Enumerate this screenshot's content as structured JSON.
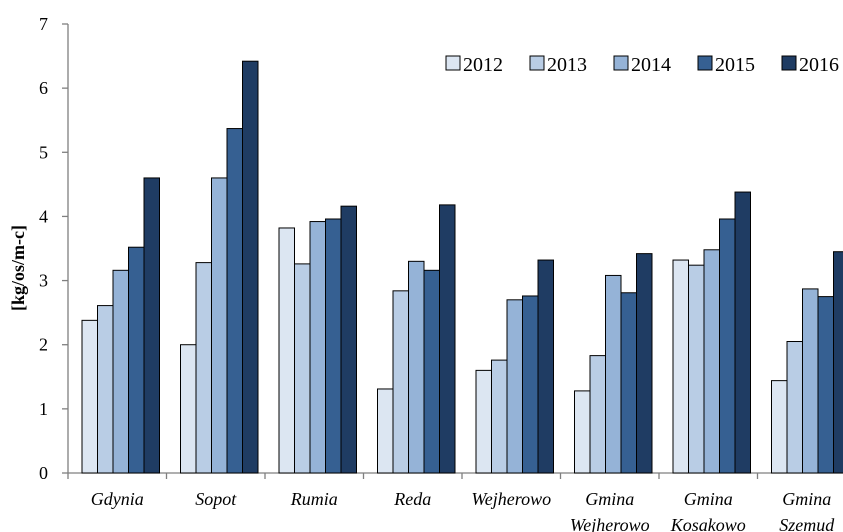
{
  "chart_data": {
    "type": "bar",
    "ylabel": "[kg/os/m-c]",
    "ylim": [
      0,
      7
    ],
    "yticks": [
      0,
      1,
      2,
      3,
      4,
      5,
      6,
      7
    ],
    "grid": false,
    "legend_position": "top-right",
    "categories": [
      [
        "Gdynia"
      ],
      [
        "Sopot"
      ],
      [
        "Rumia"
      ],
      [
        "Reda"
      ],
      [
        "Wejherowo"
      ],
      [
        "Gmina",
        "Wejherowo"
      ],
      [
        "Gmina",
        "Kosakowo"
      ],
      [
        "Gmina",
        "Szemud"
      ]
    ],
    "series": [
      {
        "name": "2012",
        "color": "#dce6f2",
        "values": [
          2.38,
          2.0,
          3.82,
          1.31,
          1.6,
          1.28,
          3.32,
          1.44
        ]
      },
      {
        "name": "2013",
        "color": "#b9cde5",
        "values": [
          2.61,
          3.28,
          3.26,
          2.84,
          1.76,
          1.83,
          3.24,
          2.05
        ]
      },
      {
        "name": "2014",
        "color": "#95b3d7",
        "values": [
          3.16,
          4.6,
          3.92,
          3.3,
          2.7,
          3.08,
          3.48,
          2.87
        ]
      },
      {
        "name": "2015",
        "color": "#366092",
        "values": [
          3.52,
          5.37,
          3.96,
          3.16,
          2.76,
          2.81,
          3.96,
          2.75
        ]
      },
      {
        "name": "2016",
        "color": "#1f3c63",
        "values": [
          4.6,
          6.42,
          4.16,
          4.18,
          3.32,
          3.42,
          4.38,
          3.45
        ]
      }
    ]
  }
}
